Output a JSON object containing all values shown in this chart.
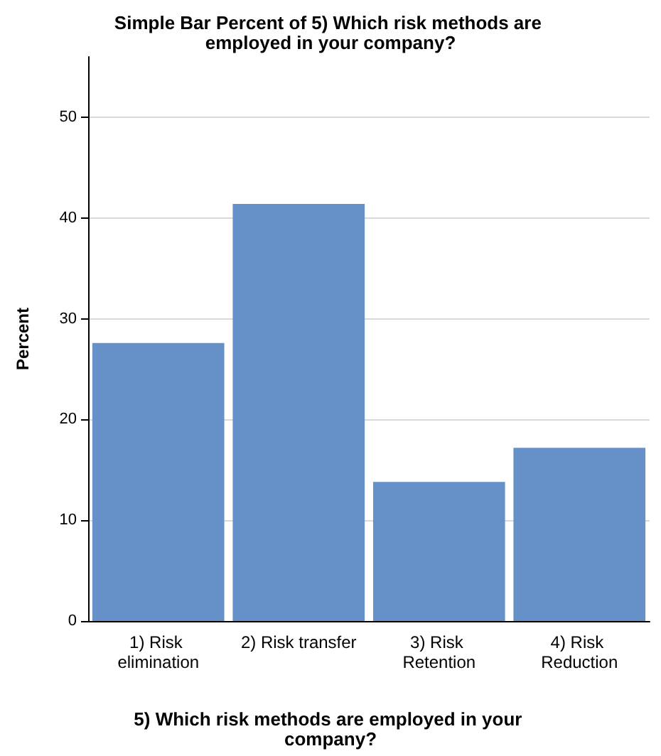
{
  "chart_data": {
    "type": "bar",
    "title": "Simple Bar Percent of 5) Which risk methods are employed in your company?",
    "xlabel": "5) Which risk methods are employed in your company?",
    "ylabel": "Percent",
    "categories": [
      "1) Risk elimination",
      "2) Risk transfer",
      "3) Risk Retention",
      "4) Risk Reduction"
    ],
    "values": [
      27.6,
      41.4,
      13.8,
      17.2
    ],
    "color": "#6590c8",
    "ylim": [
      0,
      56
    ],
    "yticks": [
      0,
      10,
      20,
      30,
      40,
      50
    ],
    "grid": "y"
  }
}
